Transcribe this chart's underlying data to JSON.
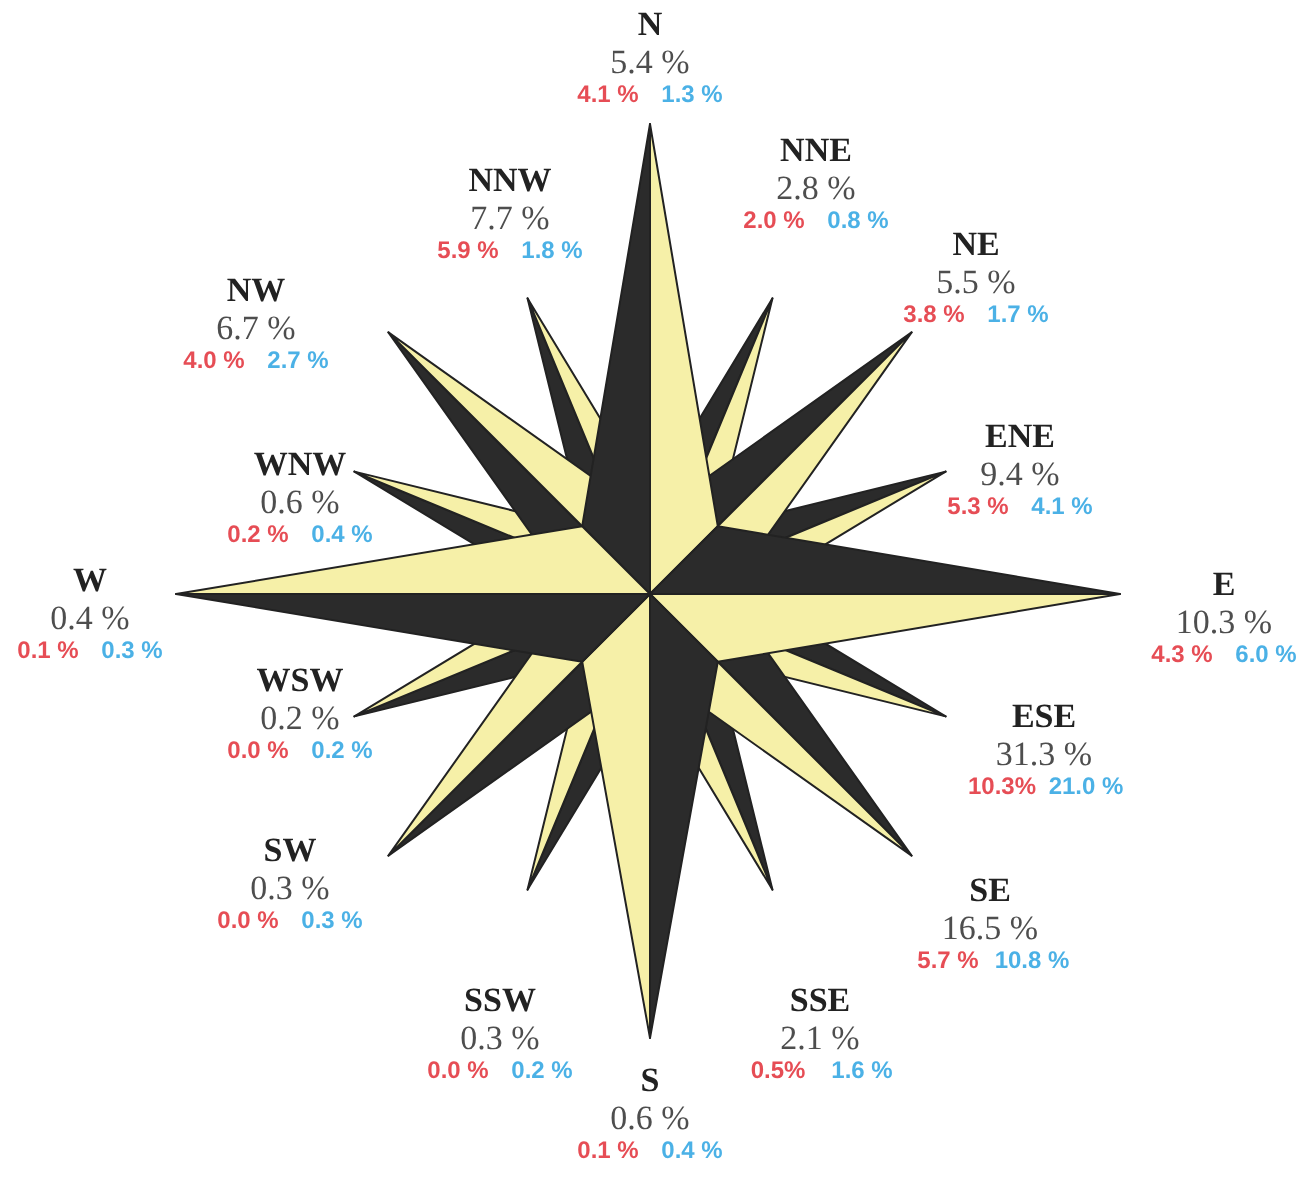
{
  "chart_data": {
    "type": "other",
    "categories": [
      "N",
      "NNE",
      "NE",
      "ENE",
      "E",
      "ESE",
      "SE",
      "SSE",
      "S",
      "SSW",
      "SW",
      "WSW",
      "W",
      "WNW",
      "NW",
      "NNW"
    ],
    "series": [
      {
        "color": "#222222",
        "values": [
          5.4,
          2.8,
          5.5,
          9.4,
          10.3,
          31.3,
          16.5,
          2.1,
          0.6,
          0.3,
          0.3,
          0.2,
          0.4,
          0.6,
          6.7,
          7.7
        ],
        "value_labels": [
          "5.4 %",
          "2.8 %",
          "5.5 %",
          "9.4 %",
          "10.3 %",
          "31.3 %",
          "16.5 %",
          "2.1 %",
          "0.6 %",
          "0.3 %",
          "0.3 %",
          "0.2 %",
          "0.4 %",
          "0.6 %",
          "6.7 %",
          "7.7 %"
        ]
      },
      {
        "color": "#e0202a",
        "values": [
          4.1,
          2.0,
          3.8,
          5.3,
          4.3,
          10.3,
          5.7,
          0.5,
          0.1,
          0.0,
          0.0,
          0.0,
          0.1,
          0.2,
          4.0,
          5.9
        ],
        "value_labels": [
          "4.1 %",
          "2.0 %",
          "3.8 %",
          "5.3 %",
          "4.3 %",
          "10.3%",
          "5.7 %",
          "0.5%",
          "0.1 %",
          "0.0 %",
          "0.0 %",
          "0.0 %",
          "0.1 %",
          "0.2 %",
          "4.0 %",
          "5.9 %"
        ]
      },
      {
        "color": "#1e9ee0",
        "values": [
          1.3,
          0.8,
          1.7,
          4.1,
          6.0,
          21.0,
          10.8,
          1.6,
          0.4,
          0.2,
          0.3,
          0.2,
          0.3,
          0.4,
          2.7,
          1.8
        ],
        "value_labels": [
          "1.3 %",
          "0.8 %",
          "1.7 %",
          "4.1 %",
          "6.0 %",
          "21.0 %",
          "10.8 %",
          "1.6 %",
          "0.4 %",
          "0.2 %",
          "0.3 %",
          "0.2 %",
          "0.3 %",
          "0.4 %",
          "2.7 %",
          "1.8 %"
        ]
      }
    ]
  }
}
